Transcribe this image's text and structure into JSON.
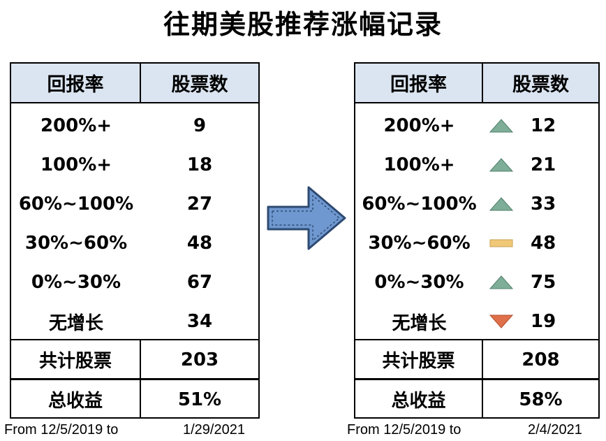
{
  "title": "往期美股推荐涨幅记录",
  "left_table": {
    "header": {
      "col1": "回报率",
      "col2": "股票数"
    },
    "rows": [
      {
        "range": "200%+",
        "count": "9"
      },
      {
        "range": "100%+",
        "count": "18"
      },
      {
        "range": "60%~100%",
        "count": "27"
      },
      {
        "range": "30%~60%",
        "count": "48"
      },
      {
        "range": "0%~30%",
        "count": "67"
      },
      {
        "range": "无增长",
        "count": "34"
      }
    ],
    "total_label": "共计股票",
    "total_value": "203",
    "return_label": "总收益",
    "return_value": "51%",
    "footer_from": "From 12/5/2019 to",
    "footer_to": "1/29/2021"
  },
  "right_table": {
    "header": {
      "col1": "回报率",
      "col2": "股票数"
    },
    "rows": [
      {
        "range": "200%+",
        "count": "12",
        "trend": "up"
      },
      {
        "range": "100%+",
        "count": "21",
        "trend": "up"
      },
      {
        "range": "60%~100%",
        "count": "33",
        "trend": "up"
      },
      {
        "range": "30%~60%",
        "count": "48",
        "trend": "flat"
      },
      {
        "range": "0%~30%",
        "count": "75",
        "trend": "up"
      },
      {
        "range": "无增长",
        "count": "19",
        "trend": "down"
      }
    ],
    "total_label": "共计股票",
    "total_value": "208",
    "return_label": "总收益",
    "return_value": "58%",
    "footer_from": "From 12/5/2019 to",
    "footer_to": "2/4/2021"
  },
  "colors": {
    "header_bg": "#dbe5f1",
    "up": "#7fae98",
    "flat": "#f0c878",
    "down": "#e0704a",
    "arrow_fill": "#6f98d0",
    "arrow_stroke": "#2e4a72"
  },
  "icons": {
    "transition": "right-arrow-icon",
    "up": "triangle-up-icon",
    "flat": "flat-bar-icon",
    "down": "triangle-down-icon"
  }
}
